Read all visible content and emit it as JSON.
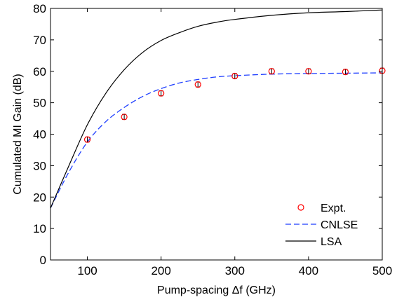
{
  "chart_data": {
    "type": "line",
    "xlabel": "Pump-spacing Δf (GHz)",
    "ylabel": "Cumulated MI Gain (dB)",
    "xlim": [
      50,
      500
    ],
    "ylim": [
      0,
      80
    ],
    "xticks": [
      100,
      200,
      300,
      400,
      500
    ],
    "yticks": [
      0,
      10,
      20,
      30,
      40,
      50,
      60,
      70,
      80
    ],
    "grid": false,
    "legend_position": "bottom-right",
    "series": [
      {
        "name": "Expt.",
        "style": "marker",
        "color": "#ff0000",
        "x": [
          100,
          150,
          200,
          250,
          300,
          350,
          400,
          450,
          500
        ],
        "y": [
          38.3,
          45.5,
          53.0,
          55.8,
          58.5,
          60.0,
          60.0,
          59.8,
          60.2
        ],
        "error": [
          0.8,
          0.8,
          0.8,
          0.8,
          0.8,
          0.8,
          0.8,
          0.8,
          0.8
        ]
      },
      {
        "name": "CNLSE",
        "style": "dashed",
        "color": "#1f3fff",
        "x": [
          50,
          75,
          100,
          125,
          150,
          175,
          200,
          225,
          250,
          275,
          300,
          350,
          400,
          450,
          500
        ],
        "y": [
          16.5,
          28.0,
          37.5,
          44.0,
          48.5,
          52.0,
          54.5,
          56.3,
          57.4,
          58.2,
          58.6,
          59.1,
          59.3,
          59.4,
          59.5
        ]
      },
      {
        "name": "LSA",
        "style": "solid",
        "color": "#000000",
        "x": [
          50,
          75,
          100,
          125,
          150,
          175,
          200,
          225,
          250,
          275,
          300,
          350,
          400,
          450,
          500
        ],
        "y": [
          16.5,
          30.0,
          43.0,
          53.0,
          60.5,
          66.0,
          69.8,
          72.3,
          74.3,
          75.6,
          76.5,
          77.8,
          78.6,
          79.0,
          79.5
        ]
      }
    ]
  }
}
